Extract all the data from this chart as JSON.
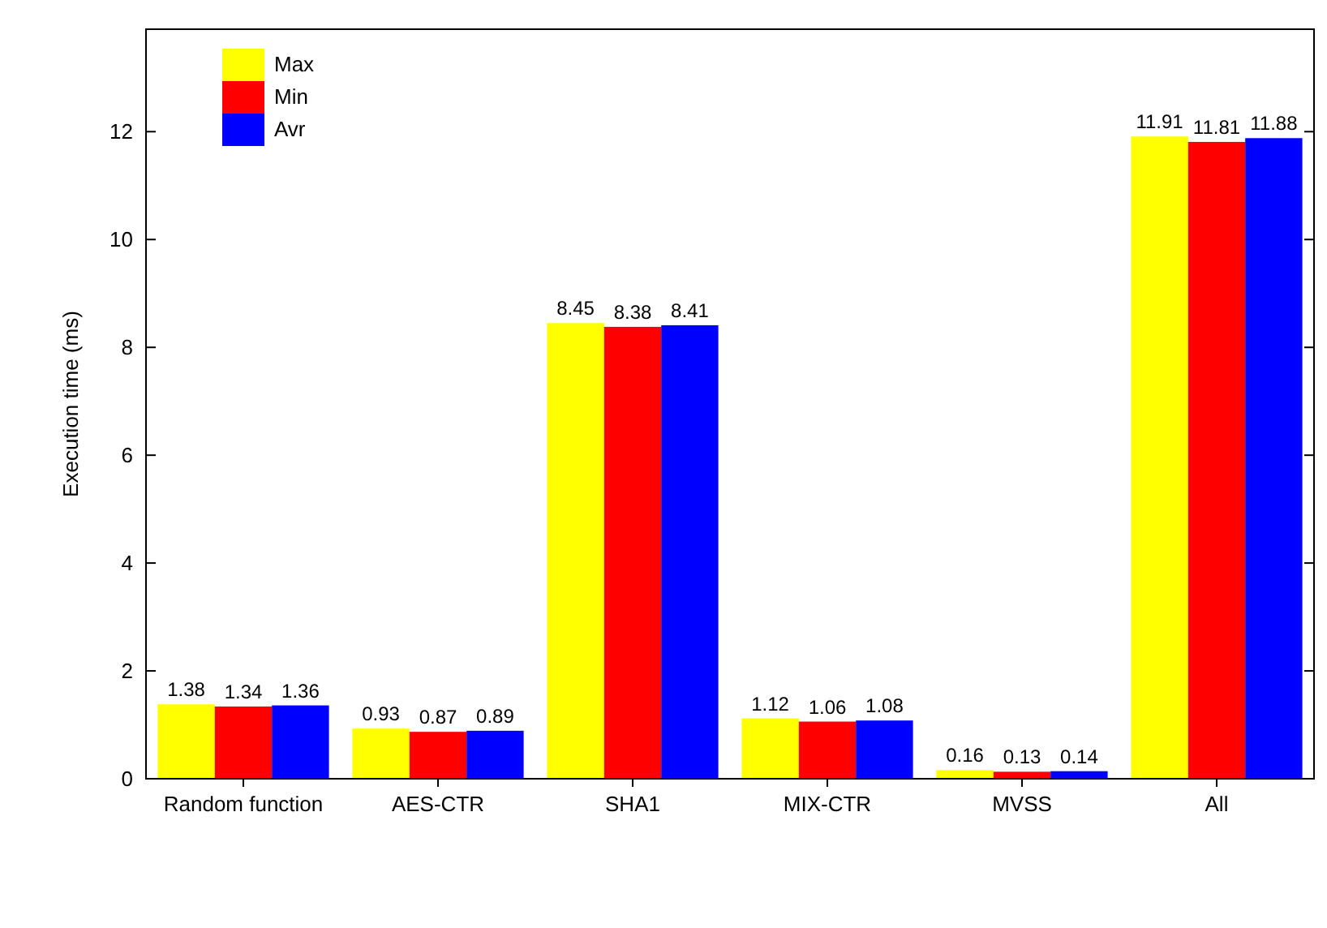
{
  "chart_data": {
    "type": "bar",
    "ylabel": "Execution time (ms)",
    "categories": [
      "Random function",
      "AES-CTR",
      "SHA1",
      "MIX-CTR",
      "MVSS",
      "All"
    ],
    "series": [
      {
        "name": "Max",
        "color": "#ffff00",
        "values": [
          1.38,
          0.93,
          8.45,
          1.12,
          0.16,
          11.91
        ]
      },
      {
        "name": "Min",
        "color": "#ff0000",
        "values": [
          1.34,
          0.87,
          8.38,
          1.06,
          0.13,
          11.81
        ]
      },
      {
        "name": "Avr",
        "color": "#0000ff",
        "values": [
          1.36,
          0.89,
          8.41,
          1.08,
          0.14,
          11.88
        ]
      }
    ],
    "ylim": [
      0,
      13.9
    ],
    "yticks": [
      0,
      2,
      4,
      6,
      8,
      10,
      12
    ],
    "data_labels": true,
    "legend": "top left",
    "grid": false
  }
}
